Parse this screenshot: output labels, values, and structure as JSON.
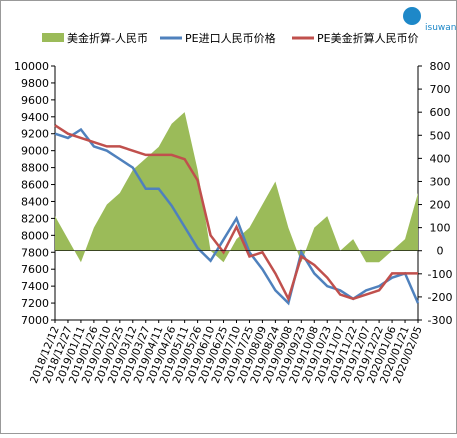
{
  "logo": "isuwang",
  "chart_data": {
    "type": "combo",
    "categories": [
      "2018/12/12",
      "2018/12/27",
      "2019/01/11",
      "2019/01/26",
      "2019/02/10",
      "2019/02/25",
      "2019/03/12",
      "2019/03/27",
      "2019/04/11",
      "2019/04/26",
      "2019/05/11",
      "2019/05/26",
      "2019/06/10",
      "2019/06/25",
      "2019/07/10",
      "2019/07/25",
      "2019/08/09",
      "2019/08/24",
      "2019/09/08",
      "2019/09/23",
      "2019/10/08",
      "2019/10/23",
      "2019/11/07",
      "2019/11/22",
      "2019/12/07",
      "2019/12/22",
      "2020/01/06",
      "2020/01/21",
      "2020/02/05"
    ],
    "series": [
      {
        "name": "美金折算-人民币",
        "type": "area",
        "axis": "y2",
        "color": "#9bbb59",
        "values": [
          150,
          50,
          -50,
          100,
          200,
          250,
          350,
          400,
          450,
          550,
          600,
          350,
          0,
          -50,
          50,
          100,
          200,
          300,
          100,
          -50,
          100,
          150,
          0,
          50,
          -50,
          -50,
          0,
          50,
          250
        ]
      },
      {
        "name": "PE进口人民币价格",
        "type": "line",
        "color": "#4f81bd",
        "values": [
          9200,
          9150,
          9250,
          9050,
          9000,
          8900,
          8800,
          8550,
          8550,
          8350,
          8100,
          7850,
          7700,
          7950,
          8200,
          7800,
          7600,
          7350,
          7200,
          7800,
          7550,
          7400,
          7350,
          7250,
          7350,
          7400,
          7500,
          7550,
          7200
        ]
      },
      {
        "name": "PE美金折算人民币价",
        "type": "line",
        "color": "#c0504d",
        "values": [
          9300,
          9200,
          9150,
          9100,
          9050,
          9050,
          9000,
          8950,
          8950,
          8950,
          8900,
          8650,
          8000,
          7800,
          8100,
          7750,
          7800,
          7550,
          7250,
          7750,
          7650,
          7500,
          7300,
          7250,
          7300,
          7350,
          7550,
          7550,
          7550
        ]
      }
    ],
    "ylim": [
      7000,
      10000
    ],
    "yticks": [
      7000,
      7200,
      7400,
      7600,
      7800,
      8000,
      8200,
      8400,
      8600,
      8800,
      9000,
      9200,
      9400,
      9600,
      9800,
      10000
    ],
    "y2lim": [
      -300,
      800
    ],
    "y2ticks": [
      -300,
      -200,
      -100,
      0,
      100,
      200,
      300,
      400,
      500,
      600,
      700,
      800
    ],
    "legend": "top"
  }
}
